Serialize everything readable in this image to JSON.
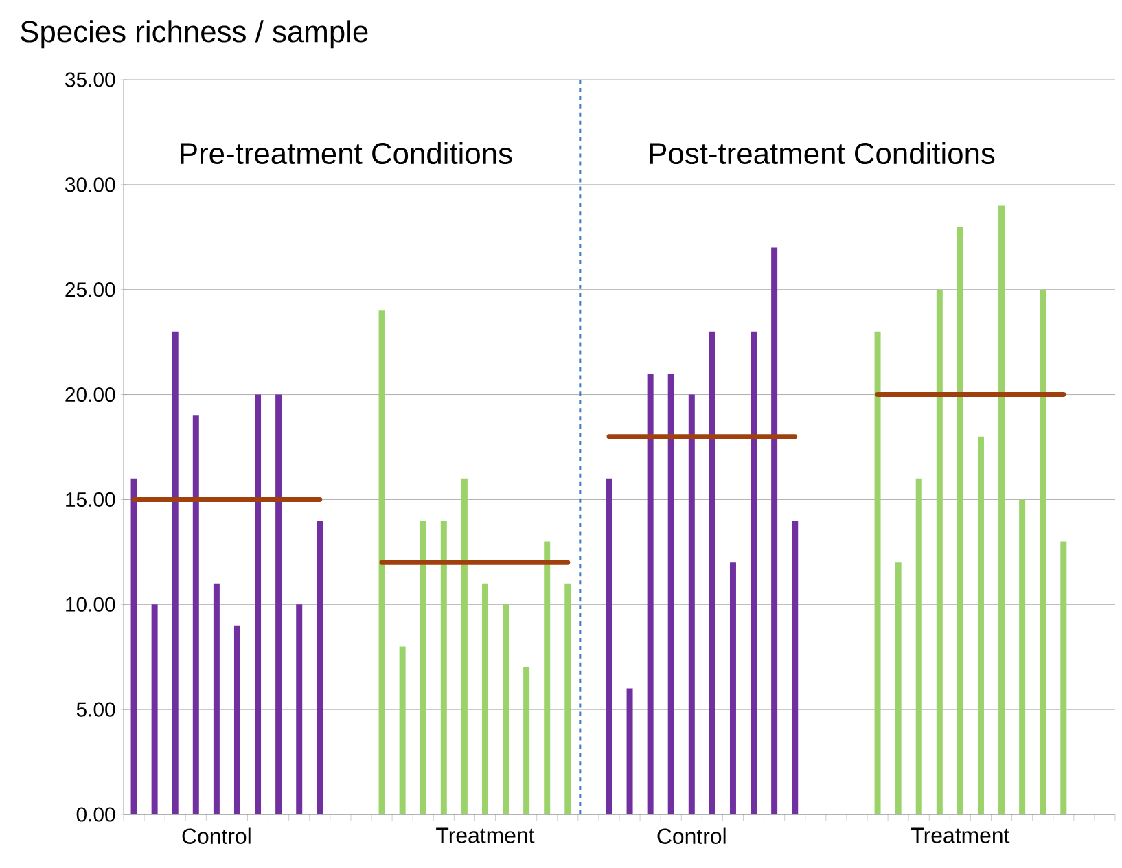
{
  "chart_data": {
    "type": "bar",
    "title": "Species richness / sample",
    "categories": [
      null,
      null,
      null,
      null,
      "Control",
      null,
      null,
      null,
      null,
      null,
      null,
      null,
      null,
      null,
      null,
      null,
      null,
      "Treatment",
      null,
      null,
      null,
      null,
      null,
      null,
      null,
      null,
      null,
      "Control",
      null,
      null,
      null,
      null,
      null,
      null,
      null,
      null,
      null,
      null,
      null,
      null,
      "Treatment",
      null,
      null,
      null,
      null,
      null,
      null,
      null
    ],
    "series": [
      {
        "values": [
          16,
          10,
          23,
          19,
          11,
          9,
          20,
          20,
          10,
          14,
          null,
          null,
          24,
          8,
          14,
          14,
          16,
          11,
          10,
          7,
          13,
          11,
          null,
          16,
          6,
          21,
          21,
          20,
          23,
          12,
          23,
          27,
          14,
          null,
          null,
          null,
          23,
          12,
          16,
          25,
          28,
          18,
          29,
          15,
          25,
          13,
          null,
          null
        ],
        "colors": [
          "#7030a0",
          "#7030a0",
          "#7030a0",
          "#7030a0",
          "#7030a0",
          "#7030a0",
          "#7030a0",
          "#7030a0",
          "#7030a0",
          "#7030a0",
          null,
          null,
          "#9bd36a",
          "#9bd36a",
          "#9bd36a",
          "#9bd36a",
          "#9bd36a",
          "#9bd36a",
          "#9bd36a",
          "#9bd36a",
          "#9bd36a",
          "#9bd36a",
          null,
          "#7030a0",
          "#7030a0",
          "#7030a0",
          "#7030a0",
          "#7030a0",
          "#7030a0",
          "#7030a0",
          "#7030a0",
          "#7030a0",
          "#7030a0",
          null,
          null,
          null,
          "#9bd36a",
          "#9bd36a",
          "#9bd36a",
          "#9bd36a",
          "#9bd36a",
          "#9bd36a",
          "#9bd36a",
          "#9bd36a",
          "#9bd36a",
          "#9bd36a",
          null,
          null
        ]
      },
      {
        "type": "line",
        "color": "#a0410d",
        "values": [
          15,
          15,
          15,
          15,
          15,
          15,
          15,
          15,
          15,
          15,
          null,
          null,
          null,
          null,
          null,
          null,
          null,
          null,
          null,
          null,
          null,
          null,
          null,
          null,
          null,
          null,
          null,
          null,
          null,
          null,
          null,
          null,
          null,
          null,
          null,
          null,
          null,
          null,
          null,
          null,
          null,
          null,
          null,
          null,
          null,
          null,
          null,
          null
        ]
      },
      {
        "type": "line",
        "color": "#a0410d",
        "values": [
          null,
          null,
          null,
          null,
          null,
          null,
          null,
          null,
          null,
          null,
          null,
          null,
          12,
          12,
          12,
          12,
          12,
          12,
          12,
          12,
          12,
          12,
          null,
          null,
          null,
          null,
          null,
          null,
          null,
          null,
          null,
          null,
          null,
          null,
          null,
          null,
          null,
          null,
          null,
          null,
          null,
          null,
          null,
          null,
          null,
          null,
          null,
          null
        ]
      },
      {
        "type": "line",
        "color": "#a0410d",
        "values": [
          null,
          null,
          null,
          null,
          null,
          null,
          null,
          null,
          null,
          null,
          null,
          null,
          null,
          null,
          null,
          null,
          null,
          null,
          null,
          null,
          null,
          null,
          null,
          18,
          18,
          18,
          18,
          18,
          18,
          18,
          18,
          18,
          18,
          null,
          null,
          null,
          null,
          null,
          null,
          null,
          null,
          null,
          null,
          null,
          null,
          null,
          null,
          null
        ]
      },
      {
        "type": "line",
        "color": "#a0410d",
        "values": [
          null,
          null,
          null,
          null,
          null,
          null,
          null,
          null,
          null,
          null,
          null,
          null,
          null,
          null,
          null,
          null,
          null,
          null,
          null,
          null,
          null,
          null,
          null,
          null,
          null,
          null,
          null,
          null,
          null,
          null,
          null,
          null,
          null,
          null,
          null,
          null,
          20,
          20,
          20,
          20,
          20,
          20,
          20,
          20,
          20,
          20,
          null,
          null
        ]
      }
    ],
    "ylim": [
      0,
      35
    ],
    "yticks": [
      {
        "value": 0,
        "label": "0.00"
      },
      {
        "value": 5,
        "label": "5.00"
      },
      {
        "value": 10,
        "label": "10.00"
      },
      {
        "value": 15,
        "label": "15.00"
      },
      {
        "value": 20,
        "label": "20.00"
      },
      {
        "value": 25,
        "label": "25.00"
      },
      {
        "value": 30,
        "label": "30.00"
      },
      {
        "value": 35,
        "label": "35.00"
      }
    ],
    "grid": "y",
    "annotations": [
      "Pre-treatment Conditions",
      "Post-treatment Conditions"
    ]
  }
}
